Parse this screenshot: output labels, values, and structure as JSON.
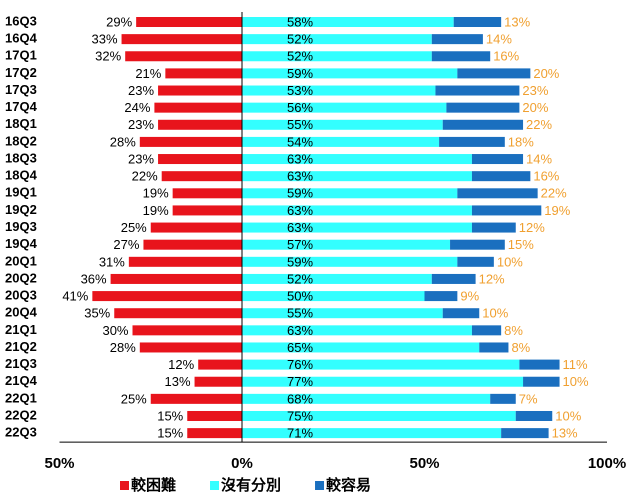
{
  "chart_data": {
    "type": "diverging_bar",
    "categories": [
      "16Q3",
      "16Q4",
      "17Q1",
      "17Q2",
      "17Q3",
      "17Q4",
      "18Q1",
      "18Q2",
      "18Q3",
      "18Q4",
      "19Q1",
      "19Q2",
      "19Q3",
      "19Q4",
      "20Q1",
      "20Q2",
      "20Q3",
      "20Q4",
      "21Q1",
      "21Q2",
      "21Q3",
      "21Q4",
      "22Q1",
      "22Q2",
      "22Q3"
    ],
    "series": [
      {
        "name": "較困難",
        "color": "#e8141c",
        "label_color": "#000000",
        "values": [
          -29,
          -33,
          -32,
          -21,
          -23,
          -24,
          -23,
          -28,
          -23,
          -22,
          -19,
          -19,
          -25,
          -27,
          -31,
          -36,
          -41,
          -35,
          -30,
          -28,
          -12,
          -13,
          -25,
          -15,
          -15
        ],
        "value_labels": [
          "29%",
          "33%",
          "32%",
          "21%",
          "23%",
          "24%",
          "23%",
          "28%",
          "23%",
          "22%",
          "19%",
          "19%",
          "25%",
          "27%",
          "31%",
          "36%",
          "41%",
          "35%",
          "30%",
          "28%",
          "12%",
          "13%",
          "25%",
          "15%",
          "15%"
        ]
      },
      {
        "name": "沒有分別",
        "color": "#33ffff",
        "label_color": "#000000",
        "values": [
          58,
          52,
          52,
          59,
          53,
          56,
          55,
          54,
          63,
          63,
          59,
          63,
          63,
          57,
          59,
          52,
          50,
          55,
          63,
          65,
          76,
          77,
          68,
          75,
          71
        ],
        "value_labels": [
          "58%",
          "52%",
          "52%",
          "59%",
          "53%",
          "56%",
          "55%",
          "54%",
          "63%",
          "63%",
          "59%",
          "63%",
          "63%",
          "57%",
          "59%",
          "52%",
          "50%",
          "55%",
          "63%",
          "65%",
          "76%",
          "77%",
          "68%",
          "75%",
          "71%"
        ]
      },
      {
        "name": "較容易",
        "color": "#1a6fbf",
        "label_color": "#f0a030",
        "values": [
          13,
          14,
          16,
          20,
          23,
          20,
          22,
          18,
          14,
          16,
          22,
          19,
          12,
          15,
          10,
          12,
          9,
          10,
          8,
          8,
          11,
          10,
          7,
          10,
          13
        ],
        "value_labels": [
          "13%",
          "14%",
          "16%",
          "20%",
          "23%",
          "20%",
          "22%",
          "18%",
          "14%",
          "16%",
          "22%",
          "19%",
          "12%",
          "15%",
          "10%",
          "12%",
          "9%",
          "10%",
          "8%",
          "8%",
          "11%",
          "10%",
          "7%",
          "10%",
          "13%"
        ]
      }
    ],
    "xlim": [
      -50,
      100
    ],
    "xticks": [
      {
        "value": -50,
        "label": "50%"
      },
      {
        "value": 0,
        "label": "0%"
      },
      {
        "value": 50,
        "label": "50%"
      },
      {
        "value": 100,
        "label": "100%"
      }
    ]
  }
}
